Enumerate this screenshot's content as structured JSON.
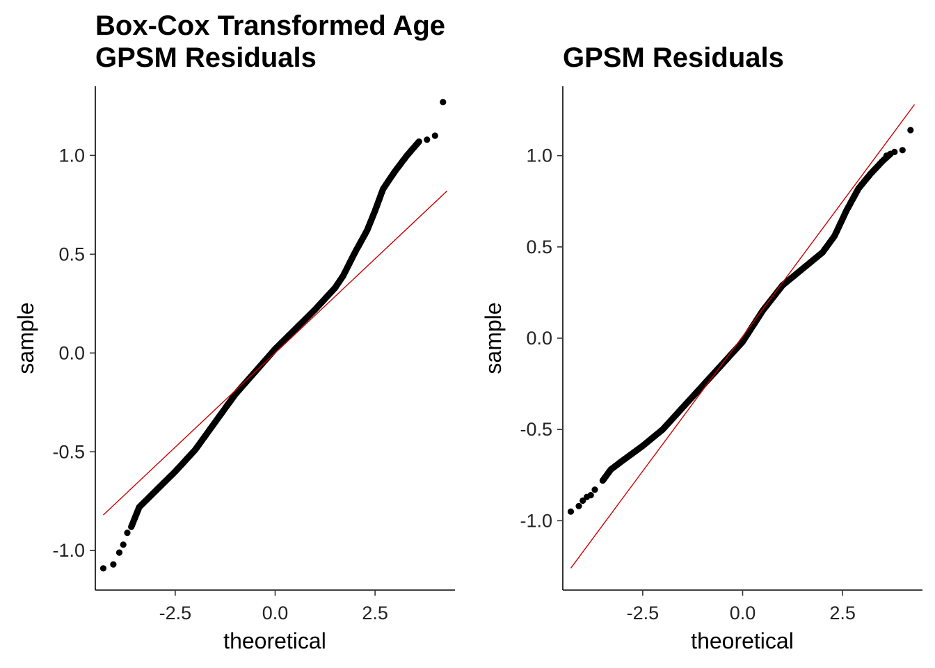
{
  "colors": {
    "points": "#000000",
    "reference_line": "#cc0000",
    "axis": "#000000",
    "background": "#ffffff"
  },
  "chart_data": [
    {
      "type": "scatter",
      "subtype": "qq-plot",
      "title": "Box-Cox Transformed Age\nGPSM Residuals",
      "xlabel": "theoretical",
      "ylabel": "sample",
      "xlim": [
        -4.5,
        4.5
      ],
      "ylim": [
        -1.2,
        1.35
      ],
      "xticks": [
        -2.5,
        0.0,
        2.5
      ],
      "xtick_labels": [
        "-2.5",
        "0.0",
        "2.5"
      ],
      "yticks": [
        -1.0,
        -0.5,
        0.0,
        0.5,
        1.0
      ],
      "ytick_labels": [
        "-1.0",
        "-0.5",
        "0.0",
        "0.5",
        "1.0"
      ],
      "grid": false,
      "legend": "none",
      "reference_line": {
        "x": [
          -4.3,
          4.3
        ],
        "y": [
          -0.82,
          0.82
        ]
      },
      "curve": {
        "x": [
          -3.6,
          -3.4,
          -3.0,
          -2.5,
          -2.0,
          -1.5,
          -1.0,
          -0.5,
          0.0,
          0.5,
          1.0,
          1.5,
          1.7,
          2.0,
          2.3,
          2.5,
          2.7,
          3.0,
          3.3,
          3.6
        ],
        "y": [
          -0.88,
          -0.78,
          -0.7,
          -0.6,
          -0.49,
          -0.35,
          -0.21,
          -0.095,
          0.02,
          0.12,
          0.22,
          0.33,
          0.39,
          0.51,
          0.62,
          0.72,
          0.83,
          0.92,
          1.0,
          1.07
        ]
      },
      "tail_points": {
        "x": [
          -4.3,
          -4.05,
          -3.9,
          -3.8,
          -3.7,
          3.8,
          4.0,
          4.2
        ],
        "y": [
          -1.09,
          -1.07,
          -1.01,
          -0.97,
          -0.91,
          1.08,
          1.1,
          1.27
        ]
      }
    },
    {
      "type": "scatter",
      "subtype": "qq-plot",
      "title": "GPSM Residuals",
      "xlabel": "theoretical",
      "ylabel": "sample",
      "xlim": [
        -4.5,
        4.5
      ],
      "ylim": [
        -1.38,
        1.38
      ],
      "xticks": [
        -2.5,
        0.0,
        2.5
      ],
      "xtick_labels": [
        "-2.5",
        "0.0",
        "2.5"
      ],
      "yticks": [
        -1.0,
        -0.5,
        0.0,
        0.5,
        1.0
      ],
      "ytick_labels": [
        "-1.0",
        "-0.5",
        "0.0",
        "0.5",
        "1.0"
      ],
      "grid": false,
      "legend": "none",
      "reference_line": {
        "x": [
          -4.3,
          4.3
        ],
        "y": [
          -1.26,
          1.28
        ]
      },
      "curve": {
        "x": [
          -3.5,
          -3.3,
          -3.0,
          -2.5,
          -2.0,
          -1.5,
          -1.0,
          -0.5,
          0.0,
          0.5,
          1.0,
          1.5,
          2.0,
          2.3,
          2.6,
          2.9,
          3.2,
          3.5,
          3.7
        ],
        "y": [
          -0.78,
          -0.72,
          -0.67,
          -0.59,
          -0.5,
          -0.38,
          -0.26,
          -0.14,
          -0.02,
          0.15,
          0.29,
          0.38,
          0.47,
          0.56,
          0.7,
          0.82,
          0.9,
          0.97,
          1.01
        ]
      },
      "tail_points": {
        "x": [
          -4.3,
          -4.1,
          -4.0,
          -3.9,
          -3.8,
          -3.7,
          3.6,
          3.8,
          4.0,
          4.2
        ],
        "y": [
          -0.95,
          -0.92,
          -0.89,
          -0.87,
          -0.86,
          -0.83,
          1.0,
          1.02,
          1.03,
          1.14
        ]
      }
    }
  ]
}
